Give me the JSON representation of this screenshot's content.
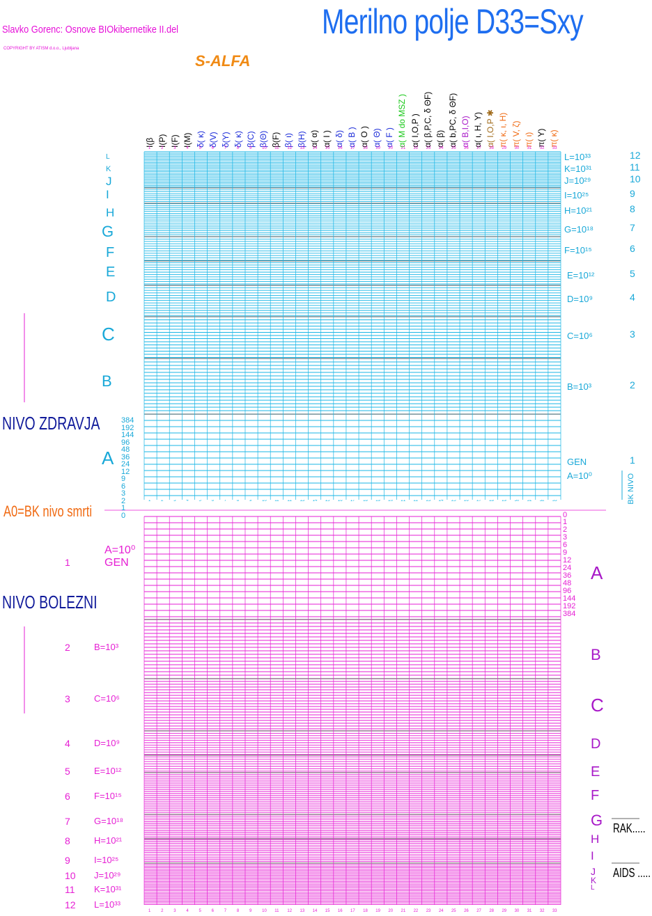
{
  "header": {
    "title": "Merilno polje D33=Sxy",
    "author": "Slavko Gorenc: Osnove BIOkibernetike II.del",
    "copyright": "COPYRIGHT BY ATISM d.o.o., Ljubljana",
    "subtitle": "S-ALFA"
  },
  "colors": {
    "health_grid": "#19b6e6",
    "disease_grid": "#e61ed4",
    "title": "#1e6ef0",
    "nivo_text": "#101a9a",
    "death_line": "#f06a12"
  },
  "columns": [
    {
      "n": "1",
      "label": "I(β",
      "color": "#000000"
    },
    {
      "n": "2",
      "label": "I(P)",
      "color": "#000000"
    },
    {
      "n": "3",
      "label": "I(F)",
      "color": "#000000"
    },
    {
      "n": "4",
      "label": "I(M)",
      "color": "#000000"
    },
    {
      "n": "5",
      "label": "δ( κ)",
      "color": "#1a2ad8"
    },
    {
      "n": "6",
      "label": "δ(V)",
      "color": "#1a2ad8"
    },
    {
      "n": "7",
      "label": "δ(Υ)",
      "color": "#1a2ad8"
    },
    {
      "n": "8",
      "label": "δ( κ)",
      "color": "#1a2ad8"
    },
    {
      "n": "9",
      "label": "β(C)",
      "color": "#1a2ad8"
    },
    {
      "n": "10",
      "label": "β(Θ)",
      "color": "#1a2ad8"
    },
    {
      "n": "11",
      "label": "β(F)",
      "color": "#000000"
    },
    {
      "n": "12",
      "label": "β( ι)",
      "color": "#1a2ad8"
    },
    {
      "n": "13",
      "label": "β(H)",
      "color": "#1a2ad8"
    },
    {
      "n": "14",
      "label": "α( α)",
      "color": "#000000"
    },
    {
      "n": "15",
      "label": "α( I )",
      "color": "#000000"
    },
    {
      "n": "16",
      "label": "α( δ)",
      "color": "#1a2ad8"
    },
    {
      "n": "17",
      "label": "α( B )",
      "color": "#1a2ad8"
    },
    {
      "n": "18",
      "label": "α( O )",
      "color": "#000000"
    },
    {
      "n": "19",
      "label": "α( Θ)",
      "color": "#1a2ad8"
    },
    {
      "n": "20",
      "label": "α( F )",
      "color": "#1a2ad8"
    },
    {
      "n": "21",
      "label": "α( M do MSZ )",
      "color": "#18c818"
    },
    {
      "n": "22",
      "label": "α( I,O,P )",
      "color": "#000000"
    },
    {
      "n": "23",
      "label": "α( β,P,C, δ ΘF)",
      "color": "#000000"
    },
    {
      "n": "24",
      "label": "α( β)",
      "color": "#000000"
    },
    {
      "n": "25",
      "label": "α( b,PC, δ ΘF)",
      "color": "#000000"
    },
    {
      "n": "26",
      "label": "α( B,I,O)",
      "color": "#a818c8"
    },
    {
      "n": "27",
      "label": "α( ι, H, Υ)",
      "color": "#000000"
    },
    {
      "n": "28",
      "label": "α( I,O,P ✱",
      "color": "#a06a1a"
    },
    {
      "n": "29",
      "label": "π( κ, ι, H)",
      "color": "#f06a12"
    },
    {
      "n": "30",
      "label": "π( V, ζ)",
      "color": "#f06a12"
    },
    {
      "n": "31",
      "label": "π( ι)",
      "color": "#f06a12"
    },
    {
      "n": "32",
      "label": "π( Υ)",
      "color": "#000000"
    },
    {
      "n": "33",
      "label": "π( κ)",
      "color": "#f06a12"
    }
  ],
  "health": {
    "nivo_label": "NIVO ZDRAVJA",
    "letters_left": [
      "L",
      "K",
      "J",
      "I",
      "H",
      "G",
      "F",
      "E",
      "D",
      "C",
      "B",
      "A"
    ],
    "levels_right": [
      {
        "label": "L=10³³",
        "num": "12"
      },
      {
        "label": "K=10³¹",
        "num": "11"
      },
      {
        "label": "J=10²⁹",
        "num": "10"
      },
      {
        "label": "I=10²⁵",
        "num": "9"
      },
      {
        "label": "H=10²¹",
        "num": "8"
      },
      {
        "label": "G=10¹⁸",
        "num": "7"
      },
      {
        "label": "F=10¹⁵",
        "num": "6"
      },
      {
        "label": "E=10¹²",
        "num": "5"
      },
      {
        "label": "D=10⁹",
        "num": "4"
      },
      {
        "label": "C=10⁶",
        "num": "3"
      },
      {
        "label": "B=10³",
        "num": "2"
      },
      {
        "label": "GEN",
        "num": "1"
      },
      {
        "label": "A=10⁰",
        "num": ""
      }
    ],
    "scale_left": [
      "384",
      "192",
      "144",
      "96",
      "48",
      "36",
      "24",
      "12",
      "9",
      "6",
      "3",
      "2",
      "1",
      "0"
    ],
    "bk_nivo": "BK NIVO"
  },
  "death": {
    "label": "A0=BK nivo smrti"
  },
  "disease": {
    "nivo_label": "NIVO BOLEZNI",
    "scale_right": [
      "0",
      "1",
      "2",
      "3",
      "6",
      "9",
      "12",
      "24",
      "36",
      "48",
      "96",
      "144",
      "192",
      "384"
    ],
    "letters_right": [
      "A",
      "B",
      "C",
      "D",
      "E",
      "F",
      "G",
      "H",
      "I",
      "J",
      "K",
      "L"
    ],
    "levels_left": [
      {
        "num": "",
        "label": "A=10⁰"
      },
      {
        "num": "1",
        "label": "GEN"
      },
      {
        "num": "2",
        "label": "B=10³"
      },
      {
        "num": "3",
        "label": "C=10⁶"
      },
      {
        "num": "4",
        "label": "D=10⁹"
      },
      {
        "num": "5",
        "label": "E=10¹²"
      },
      {
        "num": "6",
        "label": "F=10¹⁵"
      },
      {
        "num": "7",
        "label": "G=10¹⁸"
      },
      {
        "num": "8",
        "label": "H=10²¹"
      },
      {
        "num": "9",
        "label": "I=10²⁵"
      },
      {
        "num": "10",
        "label": "J=10²⁹"
      },
      {
        "num": "11",
        "label": "K=10³¹"
      },
      {
        "num": "12",
        "label": "L=10³³"
      }
    ],
    "annotations": [
      "RAK.....",
      "AIDS ....."
    ]
  }
}
